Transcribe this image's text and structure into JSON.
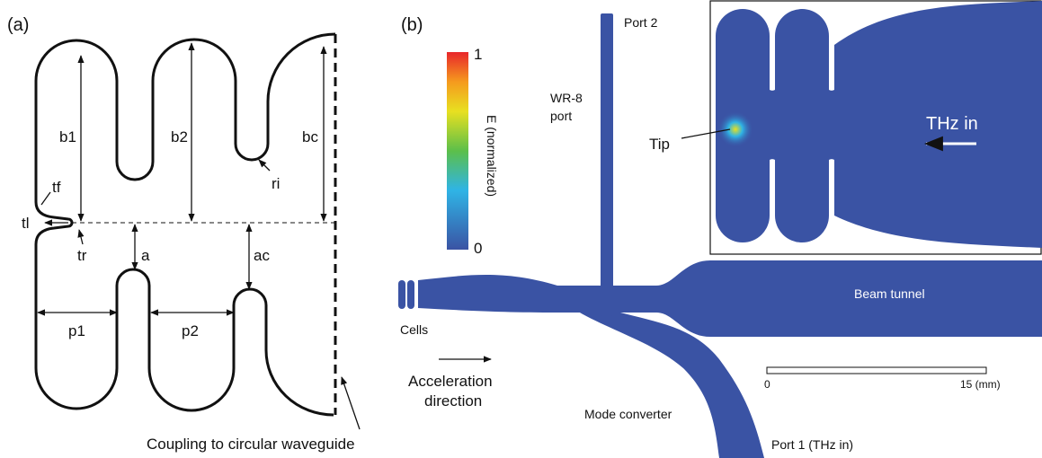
{
  "panel_a": {
    "label": "(a)",
    "dimensions": {
      "b1": "b1",
      "b2": "b2",
      "bc": "bc",
      "tf": "tf",
      "tl": "tl",
      "tr": "tr",
      "ri": "ri",
      "a": "a",
      "ac": "ac",
      "p1": "p1",
      "p2": "p2"
    },
    "caption": "Coupling to circular waveguide"
  },
  "panel_b": {
    "label": "(b)",
    "colorbar": {
      "max": "1",
      "min": "0",
      "title": "E (normalized)"
    },
    "port2": "Port 2",
    "wr8": [
      "WR-8",
      "port"
    ],
    "tip": "Tip",
    "thz_in": "THz in",
    "beam_tunnel": "Beam tunnel",
    "cells": "Cells",
    "acceleration": [
      "Acceleration",
      "direction"
    ],
    "mode_converter": "Mode converter",
    "port1": "Port 1 (THz in)",
    "scale": {
      "start": "0",
      "end": "15 (mm)"
    }
  }
}
